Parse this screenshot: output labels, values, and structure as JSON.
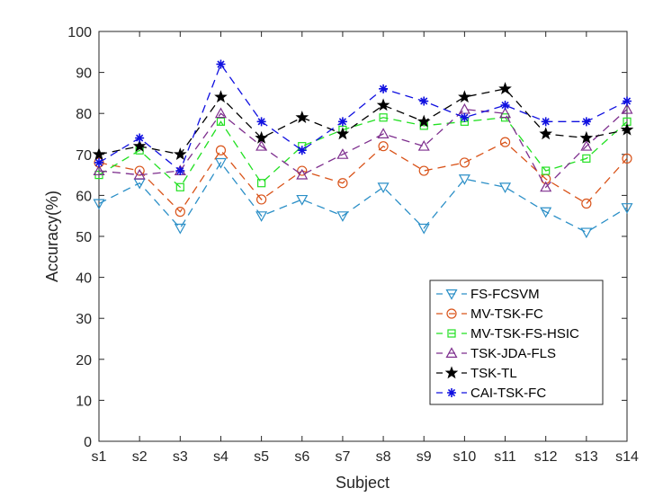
{
  "chart_data": {
    "type": "line",
    "title": "",
    "xlabel": "Subject",
    "ylabel": "Accuracy(%)",
    "ylim": [
      0,
      100
    ],
    "yticks": [
      0,
      10,
      20,
      30,
      40,
      50,
      60,
      70,
      80,
      90,
      100
    ],
    "grid": false,
    "legend_position": "bottom-right",
    "categories": [
      "s1",
      "s2",
      "s3",
      "s4",
      "s5",
      "s6",
      "s7",
      "s8",
      "s9",
      "s10",
      "s11",
      "s12",
      "s13",
      "s14"
    ],
    "series": [
      {
        "name": "FS-FCSVM",
        "color": "#2b8fc7",
        "marker": "triangle-down",
        "values": [
          58,
          63,
          52,
          68,
          55,
          59,
          55,
          62,
          52,
          64,
          62,
          56,
          51,
          57
        ]
      },
      {
        "name": "MV-TSK-FC",
        "color": "#d95319",
        "marker": "circle",
        "values": [
          68,
          66,
          56,
          71,
          59,
          66,
          63,
          72,
          66,
          68,
          73,
          64,
          58,
          69
        ]
      },
      {
        "name": "MV-TSK-FS-HSIC",
        "color": "#22e022",
        "marker": "square",
        "values": [
          65,
          71,
          62,
          78,
          63,
          72,
          76,
          79,
          77,
          78,
          79,
          66,
          69,
          78
        ]
      },
      {
        "name": "TSK-JDA-FLS",
        "color": "#7e2f8e",
        "marker": "triangle-up",
        "values": [
          66,
          65,
          66,
          80,
          72,
          65,
          70,
          75,
          72,
          81,
          80,
          62,
          72,
          81
        ]
      },
      {
        "name": "TSK-TL",
        "color": "#000000",
        "marker": "star",
        "values": [
          70,
          72,
          70,
          84,
          74,
          79,
          75,
          82,
          78,
          84,
          86,
          75,
          74,
          76
        ]
      },
      {
        "name": "CAI-TSK-FC",
        "color": "#1010e0",
        "marker": "asterisk",
        "values": [
          68,
          74,
          66,
          92,
          78,
          71,
          78,
          86,
          83,
          79,
          82,
          78,
          78,
          83
        ]
      }
    ]
  }
}
